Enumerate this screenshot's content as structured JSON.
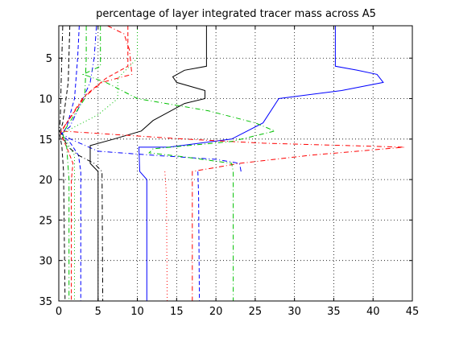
{
  "chart_data": {
    "type": "line",
    "title": "percentage of layer integrated tracer mass across A5",
    "xlabel": "",
    "ylabel": "",
    "xlim": [
      0,
      45
    ],
    "ylim": [
      35,
      1
    ],
    "y_reversed": true,
    "grid": true,
    "grid_style": "dotted",
    "x_ticks": [
      0,
      5,
      10,
      15,
      20,
      25,
      30,
      35,
      40,
      45
    ],
    "y_ticks": [
      5,
      10,
      15,
      20,
      25,
      30,
      35
    ],
    "series": [
      {
        "color": "#0000ff",
        "dash": "solid",
        "points": [
          [
            35.2,
            1
          ],
          [
            35.2,
            6
          ],
          [
            38,
            6.5
          ],
          [
            40.5,
            7
          ],
          [
            41.3,
            8
          ],
          [
            36,
            9
          ],
          [
            28,
            10
          ],
          [
            26,
            13
          ],
          [
            22,
            15
          ],
          [
            14,
            16
          ],
          [
            10.2,
            16
          ],
          [
            10.3,
            19
          ],
          [
            11.2,
            20
          ],
          [
            11.2,
            35
          ]
        ]
      },
      {
        "color": "#0000ff",
        "dash": "dashdot",
        "points": [
          [
            4.8,
            1
          ],
          [
            4.5,
            5
          ],
          [
            4,
            8
          ],
          [
            2.6,
            11
          ],
          [
            1.4,
            13.5
          ],
          [
            0.3,
            14.3
          ],
          [
            1.5,
            15
          ],
          [
            5,
            16.5
          ],
          [
            12,
            17
          ],
          [
            20,
            17.5
          ],
          [
            23,
            18
          ],
          [
            23.2,
            19
          ]
        ]
      },
      {
        "color": "#0000ff",
        "dash": "dashed",
        "points": [
          [
            2.6,
            1
          ],
          [
            2.4,
            5
          ],
          [
            2,
            10
          ],
          [
            1,
            13.5
          ],
          [
            0.4,
            14.4
          ],
          [
            1.5,
            15.5
          ],
          [
            2.5,
            17
          ],
          [
            2.8,
            19
          ],
          [
            2.8,
            35
          ]
        ]
      },
      {
        "color": "#0000ff",
        "dash": "dashed",
        "points": [
          [
            17.7,
            19
          ],
          [
            17.8,
            22
          ],
          [
            17.9,
            35
          ]
        ]
      },
      {
        "color": "#000000",
        "dash": "solid",
        "points": [
          [
            18.8,
            1
          ],
          [
            18.8,
            6
          ],
          [
            16,
            6.5
          ],
          [
            14.5,
            7.3
          ],
          [
            15,
            8
          ],
          [
            18.6,
            9
          ],
          [
            18.6,
            10
          ],
          [
            16,
            10.6
          ],
          [
            12,
            12.7
          ],
          [
            10.5,
            14
          ],
          [
            7,
            15
          ],
          [
            4,
            15.8
          ],
          [
            4,
            18
          ],
          [
            5,
            19
          ],
          [
            5,
            35
          ]
        ]
      },
      {
        "color": "#000000",
        "dash": "dashdot",
        "points": [
          [
            0.5,
            1
          ],
          [
            0.3,
            8
          ],
          [
            0.2,
            12
          ],
          [
            0.1,
            14
          ],
          [
            1.2,
            16
          ],
          [
            2.5,
            17
          ],
          [
            4.5,
            18
          ],
          [
            5.5,
            19
          ],
          [
            5.6,
            35
          ]
        ]
      },
      {
        "color": "#000000",
        "dash": "dashed",
        "points": [
          [
            1.4,
            1
          ],
          [
            1.2,
            8
          ],
          [
            0.5,
            13
          ],
          [
            0.1,
            14.3
          ],
          [
            0.4,
            16
          ],
          [
            0.6,
            19
          ],
          [
            0.8,
            35
          ]
        ]
      },
      {
        "color": "#ff0000",
        "dash": "dashdot",
        "points": [
          [
            6.2,
            1
          ],
          [
            8.3,
            2
          ],
          [
            9,
            4
          ],
          [
            9.3,
            7
          ],
          [
            5.5,
            8
          ],
          [
            3,
            10
          ],
          [
            1,
            13
          ],
          [
            0.3,
            14
          ],
          [
            16,
            15
          ],
          [
            26,
            15.5
          ],
          [
            44,
            16
          ],
          [
            32,
            17
          ],
          [
            23,
            18
          ],
          [
            17,
            19
          ],
          [
            17,
            35
          ]
        ]
      },
      {
        "color": "#ff0000",
        "dash": "dashed",
        "points": [
          [
            8.8,
            1
          ],
          [
            8.8,
            6
          ],
          [
            6,
            7.5
          ],
          [
            3.5,
            9.5
          ],
          [
            1,
            13
          ],
          [
            0.2,
            14.3
          ],
          [
            1,
            16
          ],
          [
            1.8,
            18
          ],
          [
            1.6,
            20
          ],
          [
            1.6,
            35
          ]
        ]
      },
      {
        "color": "#ff0000",
        "dash": "dotted",
        "points": [
          [
            13.5,
            19
          ],
          [
            13.7,
            22
          ],
          [
            13.8,
            35
          ]
        ]
      },
      {
        "color": "#00c000",
        "dash": "dashdot",
        "points": [
          [
            5.3,
            1
          ],
          [
            5.3,
            6
          ],
          [
            3.1,
            7
          ],
          [
            6,
            8
          ],
          [
            10,
            10
          ],
          [
            19,
            11.5
          ],
          [
            25,
            13
          ],
          [
            27.5,
            14
          ],
          [
            22,
            15.3
          ],
          [
            12,
            16.2
          ],
          [
            11.5,
            16.7
          ],
          [
            16,
            17.2
          ],
          [
            22,
            18
          ],
          [
            22.2,
            19
          ],
          [
            22.2,
            35
          ]
        ]
      },
      {
        "color": "#00c000",
        "dash": "dotted",
        "points": [
          [
            10,
            1
          ],
          [
            10,
            5
          ],
          [
            7.5,
            7.5
          ],
          [
            7.5,
            10
          ],
          [
            5,
            12
          ],
          [
            2,
            13.5
          ],
          [
            0.4,
            14.3
          ],
          [
            2,
            17
          ],
          [
            2,
            19
          ],
          [
            2,
            35
          ]
        ]
      },
      {
        "color": "#00c000",
        "dash": "dashdot",
        "points": [
          [
            3.5,
            1
          ],
          [
            3.5,
            5
          ],
          [
            3.3,
            10
          ],
          [
            1,
            13.5
          ],
          [
            0.5,
            14.4
          ],
          [
            1,
            16
          ],
          [
            1.3,
            20
          ],
          [
            1.3,
            35
          ]
        ]
      }
    ]
  }
}
